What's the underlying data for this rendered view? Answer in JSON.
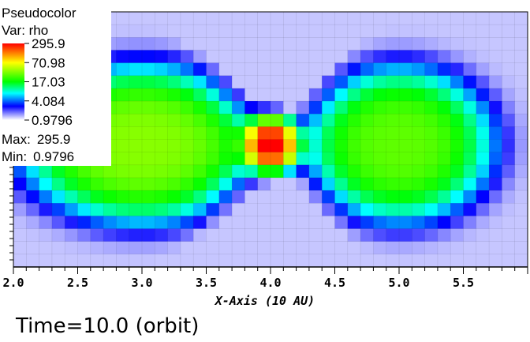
{
  "chart_data": {
    "type": "heatmap",
    "title": "Pseudocolor",
    "variable_label": "Var: rho",
    "xlabel": "X-Axis (10 AU)",
    "x_ticks": [
      2.0,
      2.5,
      3.0,
      3.5,
      4.0,
      4.5,
      5.0,
      5.5
    ],
    "x_tick_labels": [
      "2.0",
      "2.5",
      "3.0",
      "3.5",
      "4.0",
      "4.5",
      "5.0",
      "5.5"
    ],
    "xlim": [
      2.0,
      6.0
    ],
    "scale": "log",
    "colorbar_labels": [
      "295.9",
      "70.98",
      "17.03",
      "4.084",
      "0.9796"
    ],
    "max_label": "Max:",
    "max_value": "295.9",
    "min_label": "Min:",
    "min_value": "0.9796",
    "vmin": 0.9796,
    "vmax": 295.9,
    "colormap": [
      "#ff0000",
      "#ffff00",
      "#00ff00",
      "#00ffff",
      "#0000ff",
      "#ffffff"
    ],
    "structure": {
      "lobes": [
        {
          "x_center": 3.0,
          "x_halfwidth": 0.95,
          "peak": 28
        },
        {
          "x_center": 5.0,
          "x_halfwidth": 0.75,
          "peak": 22
        }
      ],
      "core": {
        "x_center": 4.0,
        "peak": 295.9
      },
      "neck_x": 4.0
    }
  },
  "time_label": "Time=10.0 (orbit)"
}
